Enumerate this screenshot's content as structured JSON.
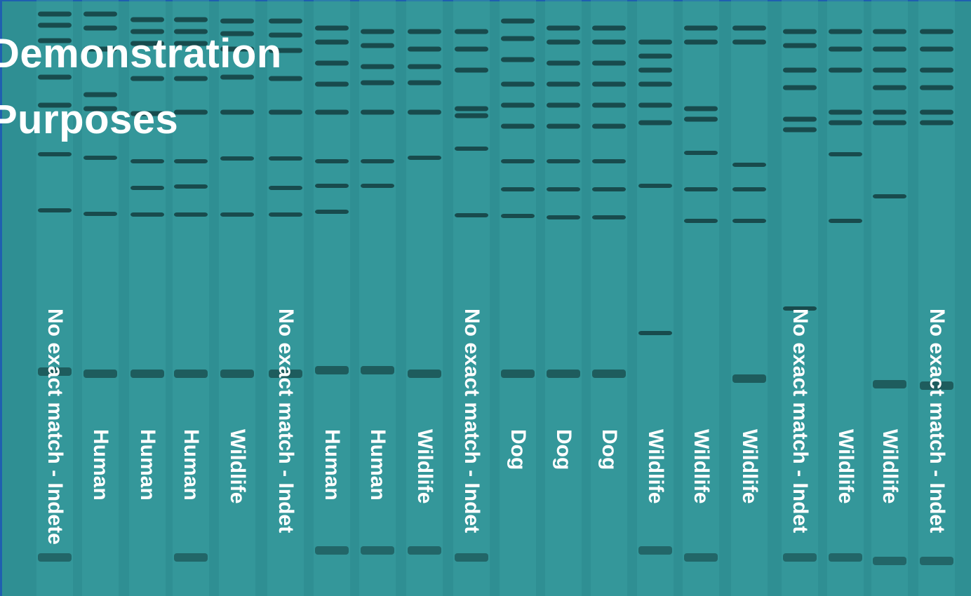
{
  "title": {
    "line1": "Demonstration",
    "line2": "Purposes"
  },
  "lanes": [
    {
      "label": "No exact match - Indete"
    },
    {
      "label": "Human"
    },
    {
      "label": "Human"
    },
    {
      "label": "Human"
    },
    {
      "label": "Wildlife"
    },
    {
      "label": "No exact match - Indet"
    },
    {
      "label": "Human"
    },
    {
      "label": "Human"
    },
    {
      "label": "Wildlife"
    },
    {
      "label": "No exact match - Indet"
    },
    {
      "label": "Dog"
    },
    {
      "label": "Dog"
    },
    {
      "label": "Dog"
    },
    {
      "label": "Wildlife"
    },
    {
      "label": "Wildlife"
    },
    {
      "label": "Wildlife"
    },
    {
      "label": "No exact match - Indet"
    },
    {
      "label": "Wildlife"
    },
    {
      "label": "Wildlife"
    },
    {
      "label": "No exact match - Indet"
    }
  ],
  "colors": {
    "gel": "#2f8f93",
    "band": "#0d2b2c",
    "frame": "#1f5fb0",
    "text": "#ffffff"
  }
}
